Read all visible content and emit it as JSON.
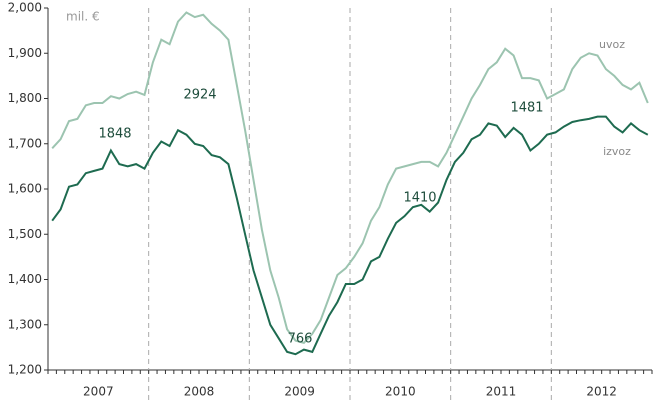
{
  "chart_data": {
    "type": "line",
    "y_unit": "mil. €",
    "categories": [
      null,
      null,
      null,
      null,
      null,
      "2007",
      null,
      null,
      null,
      null,
      null,
      null,
      null,
      null,
      null,
      null,
      null,
      "2008",
      null,
      null,
      null,
      null,
      null,
      null,
      null,
      null,
      null,
      null,
      null,
      "2009",
      null,
      null,
      null,
      null,
      null,
      null,
      null,
      null,
      null,
      null,
      null,
      "2010",
      null,
      null,
      null,
      null,
      null,
      null,
      null,
      null,
      null,
      null,
      null,
      "2011",
      null,
      null,
      null,
      null,
      null,
      null,
      null,
      null,
      null,
      null,
      null,
      "2012",
      null,
      null,
      null,
      null,
      null,
      null
    ],
    "series": [
      {
        "name": "uvoz",
        "color": "#9cc4b0",
        "values": [
          1690,
          1710,
          1750,
          1755,
          1785,
          1790,
          1790,
          1805,
          1800,
          1810,
          1815,
          1808,
          1880,
          1930,
          1920,
          1970,
          1990,
          1980,
          1985,
          1965,
          1950,
          1930,
          1830,
          1730,
          1620,
          1510,
          1420,
          1360,
          1290,
          1265,
          1260,
          1280,
          1310,
          1360,
          1410,
          1425,
          1450,
          1480,
          1530,
          1560,
          1610,
          1645,
          1650,
          1655,
          1660,
          1660,
          1650,
          1680,
          1720,
          1760,
          1800,
          1830,
          1865,
          1880,
          1910,
          1895,
          1845,
          1845,
          1840,
          1800,
          1810,
          1820,
          1865,
          1890,
          1900,
          1895,
          1865,
          1850,
          1830,
          1820,
          1835,
          1790
        ]
      },
      {
        "name": "izvoz",
        "color": "#1e6b50",
        "values": [
          1530,
          1555,
          1605,
          1610,
          1635,
          1640,
          1645,
          1685,
          1655,
          1650,
          1655,
          1645,
          1680,
          1705,
          1695,
          1730,
          1720,
          1700,
          1695,
          1675,
          1670,
          1655,
          1580,
          1500,
          1420,
          1360,
          1300,
          1270,
          1240,
          1235,
          1245,
          1240,
          1280,
          1320,
          1350,
          1390,
          1390,
          1400,
          1440,
          1450,
          1490,
          1525,
          1540,
          1560,
          1565,
          1550,
          1570,
          1620,
          1660,
          1680,
          1710,
          1720,
          1745,
          1740,
          1715,
          1735,
          1720,
          1685,
          1700,
          1720,
          1725,
          1738,
          1748,
          1752,
          1755,
          1760,
          1760,
          1738,
          1725,
          1745,
          1730,
          1720
        ]
      }
    ],
    "annotations": [
      "1848",
      "2924",
      "766",
      "1410",
      "1481"
    ],
    "ylim": [
      1200,
      2000
    ],
    "yticks": [
      {
        "value": 1200,
        "label": "1,200"
      },
      {
        "value": 1300,
        "label": "1,300"
      },
      {
        "value": 1400,
        "label": "1,400"
      },
      {
        "value": 1500,
        "label": "1,500"
      },
      {
        "value": 1600,
        "label": "1,600"
      },
      {
        "value": 1700,
        "label": "1,700"
      },
      {
        "value": 1800,
        "label": "1,800"
      },
      {
        "value": 1900,
        "label": "1,900"
      },
      {
        "value": 2000,
        "label": "2,000"
      }
    ],
    "grid": false
  }
}
